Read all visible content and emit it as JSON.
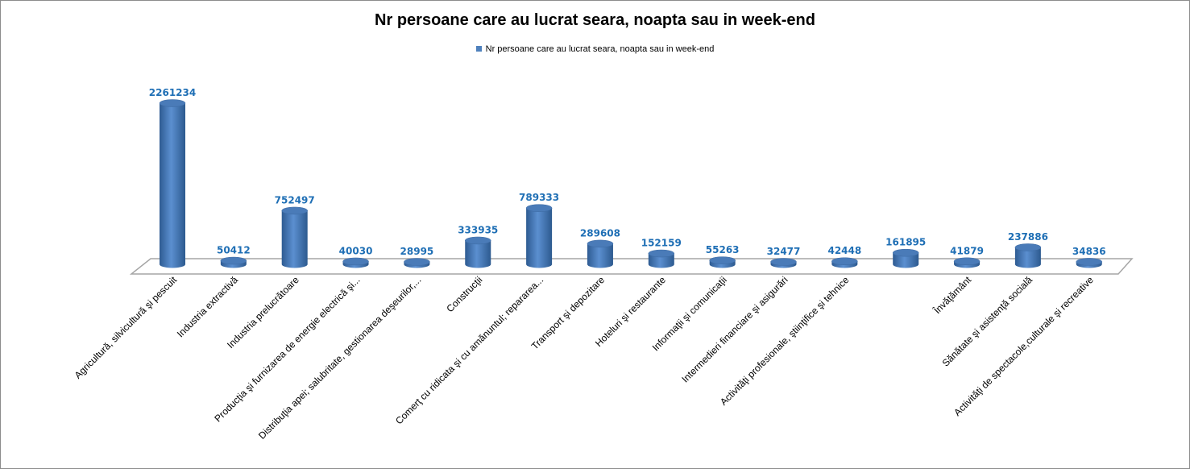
{
  "chart_data": {
    "type": "bar",
    "title": "Nr persoane care au lucrat seara, noapta sau in week-end",
    "legend": [
      {
        "name": "Nr persoane care au lucrat seara, noapta sau in week-end",
        "color": "#4f81bd"
      }
    ],
    "legend_position": "top",
    "xlabel": "",
    "ylabel": "",
    "ylim": [
      0,
      2300000
    ],
    "grid": false,
    "categories": [
      "Agricultură, silvicultură şi pescuit",
      "Industria extractivă",
      "Industria prelucrătoare",
      "Producţia şi furnizarea de energie electrică şi...",
      "Distribuţia apei; salubritate, gestionarea deşeurilor,...",
      "Construcţii",
      "Comerţ cu ridicata şi cu amănuntul; repararea...",
      "Transport şi depozitare",
      "Hoteluri şi restaurante",
      "Informaţii şi comunicaţii",
      "Intermedieri financiare şi asigurări",
      "Activităţi profesionale, ştiinţifice şi tehnice",
      "",
      "Învăţământ",
      "Sănătate şi asistenţă socială",
      "Activităţi de spectacole,culturale şi recreative"
    ],
    "series": [
      {
        "name": "Nr persoane care au lucrat seara, noapta sau in week-end",
        "values": [
          2261234,
          50412,
          752497,
          40030,
          28995,
          333935,
          789333,
          289608,
          152159,
          55263,
          32477,
          42448,
          161895,
          41879,
          237886,
          34836
        ]
      }
    ]
  }
}
